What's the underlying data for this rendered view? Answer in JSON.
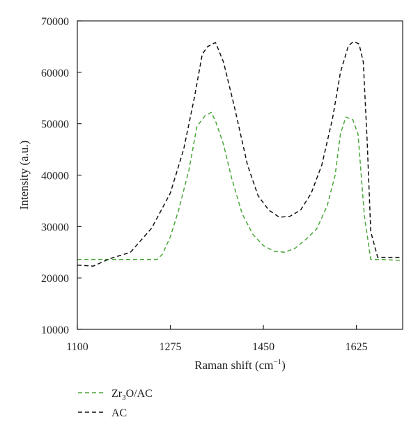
{
  "chart_data": {
    "type": "line",
    "title": "",
    "xlabel": "Raman shift (cm",
    "xlabel_sup": "−1",
    "xlabel_close": ")",
    "ylabel": "Intensity (a.u.)",
    "xlim": [
      1100,
      1712
    ],
    "ylim": [
      10000,
      70000
    ],
    "x_ticks": [
      1100,
      1275,
      1450,
      1625
    ],
    "y_ticks": [
      10000,
      20000,
      30000,
      40000,
      50000,
      60000,
      70000
    ],
    "x_tick_labels": [
      "1100",
      "1275",
      "1450",
      "1625"
    ],
    "y_tick_labels": [
      "10000",
      "20000",
      "30000",
      "40000",
      "50000",
      "60000",
      "70000"
    ],
    "grid": false,
    "legend_position": "bottom-left below plot",
    "series": [
      {
        "name": "Zr3O/AC",
        "legend_base": "Zr",
        "legend_sub": "3",
        "legend_rest": "O/AC",
        "color": "#4aa63a",
        "dash": "dashed",
        "x": [
          1100,
          1150,
          1200,
          1250,
          1260,
          1275,
          1290,
          1310,
          1325,
          1340,
          1352,
          1360,
          1375,
          1390,
          1410,
          1430,
          1450,
          1470,
          1490,
          1510,
          1530,
          1550,
          1570,
          1585,
          1595,
          1605,
          1618,
          1628,
          1640,
          1652,
          1670,
          1712
        ],
        "y": [
          23600,
          23600,
          23600,
          23600,
          24600,
          28000,
          33000,
          41000,
          49500,
          51500,
          52200,
          50500,
          46000,
          39500,
          32500,
          28500,
          26300,
          25200,
          25000,
          25800,
          27500,
          29500,
          34000,
          40000,
          48000,
          51300,
          50800,
          48000,
          32000,
          23600,
          23600,
          23400
        ]
      },
      {
        "name": "AC",
        "legend_label": "AC",
        "color": "#111111",
        "dash": "dashed",
        "x": [
          1100,
          1130,
          1160,
          1200,
          1240,
          1275,
          1300,
          1320,
          1335,
          1345,
          1360,
          1375,
          1395,
          1420,
          1440,
          1460,
          1480,
          1500,
          1520,
          1540,
          1560,
          1580,
          1595,
          1610,
          1620,
          1630,
          1638,
          1645,
          1652,
          1665,
          1712
        ],
        "y": [
          22500,
          22300,
          23700,
          25000,
          29700,
          36500,
          45000,
          55000,
          63500,
          65000,
          65800,
          62000,
          53500,
          42000,
          36000,
          33200,
          31800,
          32000,
          33200,
          36500,
          42000,
          51000,
          60000,
          65200,
          66000,
          65500,
          62000,
          47000,
          29000,
          24000,
          24000
        ]
      }
    ]
  }
}
